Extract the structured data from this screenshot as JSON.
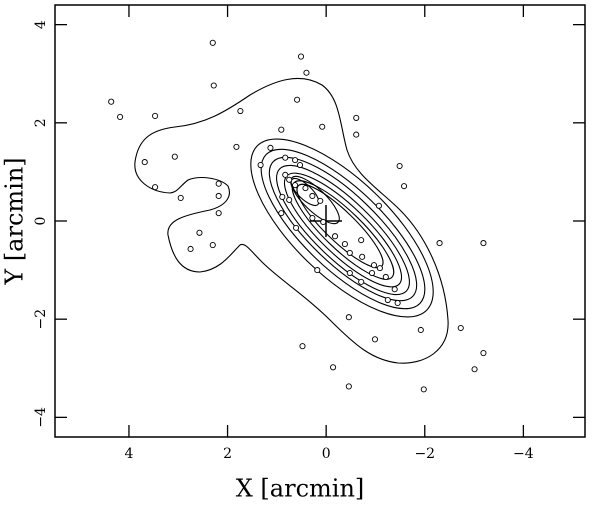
{
  "chart_data": {
    "type": "scatter",
    "x_label": "X [arcmin]",
    "y_label": "Y [arcmin]",
    "xlim": [
      5.5,
      -5.25
    ],
    "ylim": [
      -4.4,
      4.4
    ],
    "xticks": [
      4,
      2,
      0,
      {
        "value": -2,
        "label": "−2"
      },
      {
        "value": -4,
        "label": "−4"
      }
    ],
    "yticks": [
      {
        "value": -4,
        "label": "−4"
      },
      {
        "value": -2,
        "label": "−2"
      },
      0,
      2,
      4
    ],
    "color": "#000000",
    "x": [
      4.36,
      4.18,
      3.47,
      2.3,
      2.28,
      0.51,
      0.4,
      0.59,
      1.74,
      0.08,
      -0.61,
      -0.61,
      3.68,
      3.07,
      3.47,
      2.95,
      2.18,
      2.18,
      2.18,
      1.82,
      1.33,
      2.75,
      2.57,
      2.3,
      -1.49,
      -1.58,
      -1.07,
      -2.3,
      -3.19,
      -2.73,
      -3.19,
      -3.01,
      -1.98,
      -1.92,
      -1.45,
      -0.99,
      -0.46,
      0.48,
      -0.14,
      -0.46,
      0.18,
      0.83,
      1.13,
      0.63,
      0.53,
      0.83,
      0.75,
      0.63,
      0.42,
      0.28,
      0.89,
      0.75,
      0.91,
      0.61,
      0.28,
      0.06,
      -0.18,
      -0.38,
      -0.48,
      -0.73,
      -0.71,
      -0.97,
      -0.93,
      -1.09,
      -1.21,
      -1.39,
      -1.25,
      -0.48,
      -0.71,
      0.12,
      0.91
    ],
    "y": [
      2.43,
      2.12,
      2.14,
      3.63,
      2.76,
      3.35,
      3.02,
      2.47,
      2.24,
      1.92,
      2.1,
      1.76,
      1.2,
      1.31,
      0.69,
      0.47,
      0.76,
      0.51,
      0.16,
      1.51,
      1.14,
      -0.57,
      -0.24,
      -0.49,
      1.12,
      0.71,
      0.31,
      -0.45,
      -0.45,
      -2.18,
      -2.69,
      -3.02,
      -3.43,
      -2.22,
      -1.67,
      -2.41,
      -1.96,
      -2.55,
      -2.98,
      -3.37,
      -1.0,
      1.29,
      1.49,
      1.24,
      1.14,
      0.94,
      0.84,
      0.73,
      0.67,
      0.51,
      0.49,
      0.43,
      0.16,
      -0.14,
      0.06,
      -0.02,
      -0.31,
      -0.47,
      -0.65,
      -0.73,
      -0.39,
      -0.9,
      -1.06,
      -0.96,
      -1.14,
      -1.39,
      -1.61,
      -1.06,
      -1.24,
      0.41,
      1.86
    ]
  }
}
